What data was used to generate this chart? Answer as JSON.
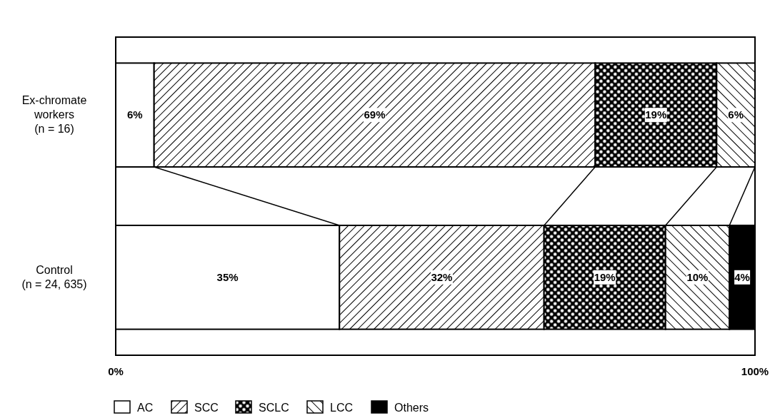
{
  "chart_data": {
    "type": "bar",
    "orientation": "horizontal",
    "stacked": true,
    "categories": [
      "Ex-chromate\nworkers\n(n = 16)",
      "Control\n(n = 24, 635)"
    ],
    "series": [
      {
        "name": "AC",
        "color": "#ffffff",
        "values": [
          6,
          35
        ],
        "value_labels": [
          "6%",
          "35%"
        ]
      },
      {
        "name": "SCC",
        "color": "#000000",
        "values": [
          69,
          32
        ],
        "value_labels": [
          "69%",
          "32%"
        ]
      },
      {
        "name": "SCLC",
        "color": "#000000",
        "values": [
          19,
          19
        ],
        "value_labels": [
          "19%",
          "19%"
        ]
      },
      {
        "name": "LCC",
        "color": "#000000",
        "values": [
          6,
          10
        ],
        "value_labels": [
          "6%",
          "10%"
        ]
      },
      {
        "name": "Others",
        "color": "#000000",
        "values": [
          null,
          4
        ],
        "value_labels": [
          null,
          "4%"
        ]
      }
    ],
    "xlim": [
      0,
      100
    ],
    "xticks": [
      {
        "value": 0,
        "label": "0%"
      },
      {
        "value": 100,
        "label": "100%"
      }
    ],
    "legend": "bottom"
  }
}
